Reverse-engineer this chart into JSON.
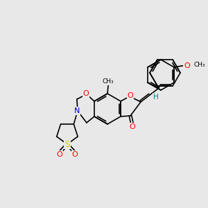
{
  "background_color": "#e8e8e8",
  "bond_color": "#000000",
  "atom_colors": {
    "O": "#ff0000",
    "N": "#0000cc",
    "S": "#cccc00",
    "C": "#000000",
    "H": "#008080"
  },
  "font_size_atom": 8.0,
  "figsize": [
    3.0,
    3.0
  ],
  "dpi": 100,
  "lw": 1.2
}
